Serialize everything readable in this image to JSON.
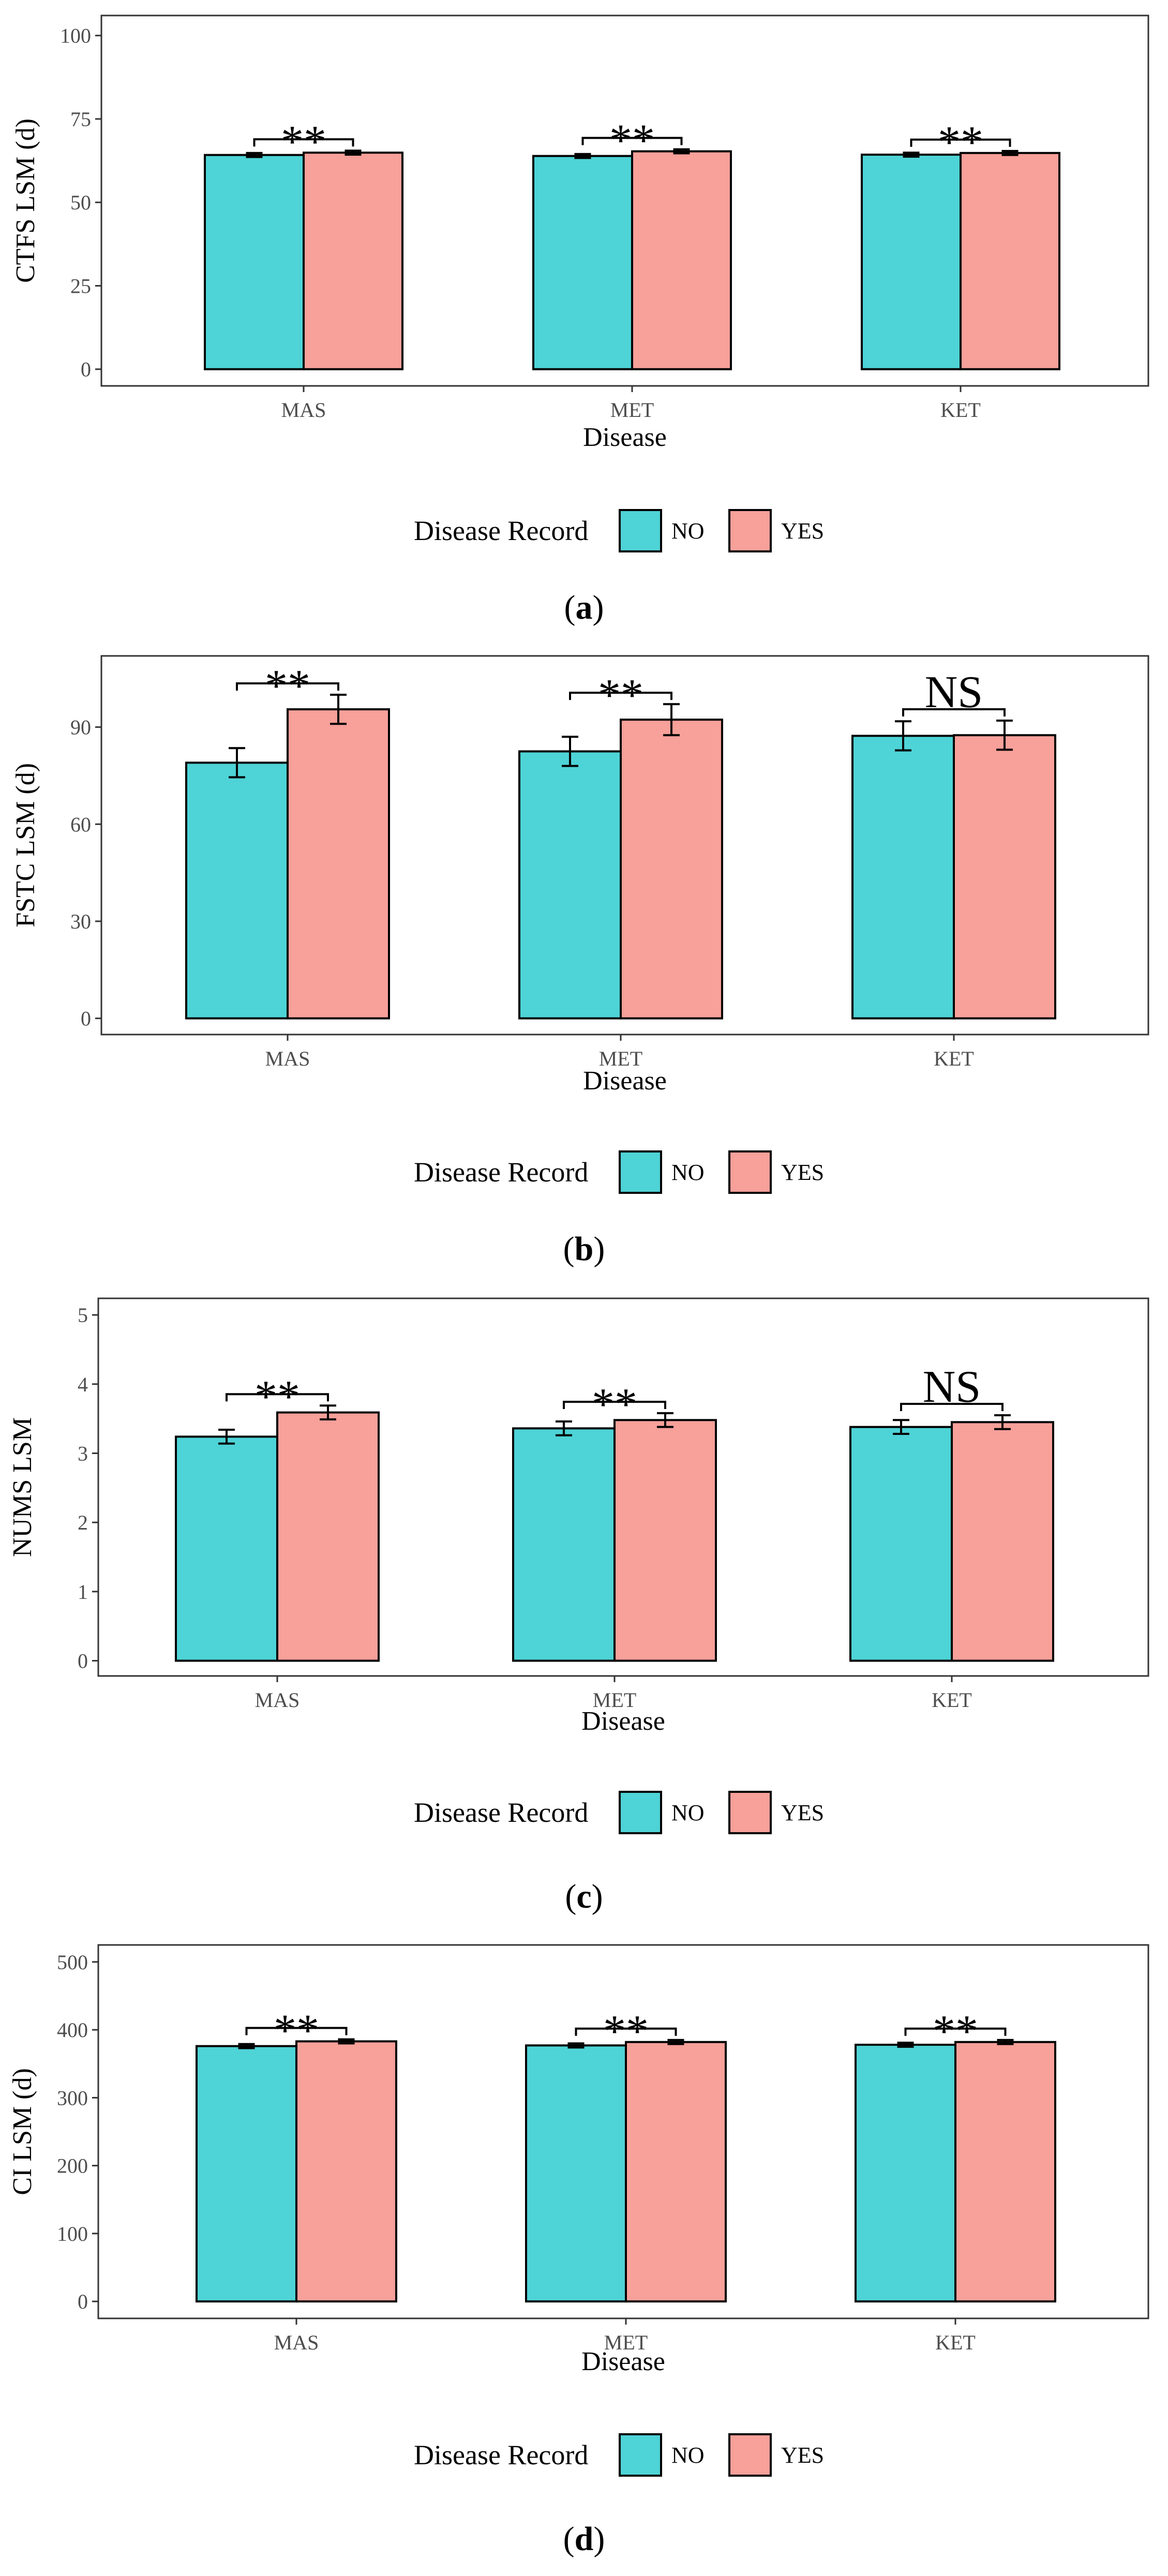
{
  "colors": {
    "NO": "#4ED3D6",
    "YES": "#F8A09A",
    "frame": "#333333",
    "bar_outline": "#000000"
  },
  "chart_data": [
    {
      "type": "bar",
      "panel_label": "a",
      "categories": [
        "MAS",
        "MET",
        "KET"
      ],
      "series": [
        {
          "name": "NO",
          "values": [
            64.2,
            63.9,
            64.3
          ],
          "errors": [
            0.6,
            0.6,
            0.6
          ]
        },
        {
          "name": "YES",
          "values": [
            64.9,
            65.3,
            64.8
          ],
          "errors": [
            0.6,
            0.6,
            0.6
          ]
        }
      ],
      "significance": [
        "**",
        "**",
        "**"
      ],
      "xlabel": "Disease",
      "ylabel": "CTFS LSM (d)",
      "ylim": [
        -5,
        106
      ],
      "yticks": [
        0,
        25,
        50,
        75,
        100
      ],
      "legend_title": "Disease Record",
      "legend_position": "bottom"
    },
    {
      "type": "bar",
      "panel_label": "b",
      "categories": [
        "MAS",
        "MET",
        "KET"
      ],
      "series": [
        {
          "name": "NO",
          "values": [
            79,
            82.5,
            87.3
          ],
          "errors": [
            4.5,
            4.5,
            4.5
          ]
        },
        {
          "name": "YES",
          "values": [
            95.5,
            92.3,
            87.5
          ],
          "errors": [
            4.5,
            4.8,
            4.5
          ]
        }
      ],
      "significance": [
        "**",
        "**",
        "NS"
      ],
      "xlabel": "Disease",
      "ylabel": "FSTC LSM (d)",
      "ylim": [
        -5,
        112
      ],
      "yticks": [
        0,
        30,
        60,
        90
      ],
      "legend_title": "Disease Record",
      "legend_position": "bottom"
    },
    {
      "type": "bar",
      "panel_label": "c",
      "categories": [
        "MAS",
        "MET",
        "KET"
      ],
      "series": [
        {
          "name": "NO",
          "values": [
            3.24,
            3.36,
            3.38
          ],
          "errors": [
            0.1,
            0.1,
            0.1
          ]
        },
        {
          "name": "YES",
          "values": [
            3.59,
            3.48,
            3.45
          ],
          "errors": [
            0.1,
            0.1,
            0.1
          ]
        }
      ],
      "significance": [
        "**",
        "**",
        "NS"
      ],
      "xlabel": "Disease",
      "ylabel": "NUMS LSM",
      "ylim": [
        -0.22,
        5.24
      ],
      "yticks": [
        0,
        1,
        2,
        3,
        4,
        5
      ],
      "legend_title": "Disease Record",
      "legend_position": "bottom"
    },
    {
      "type": "bar",
      "panel_label": "d",
      "categories": [
        "MAS",
        "MET",
        "KET"
      ],
      "series": [
        {
          "name": "NO",
          "values": [
            376,
            377,
            378
          ],
          "errors": [
            3,
            3,
            3
          ]
        },
        {
          "name": "YES",
          "values": [
            383,
            382,
            382
          ],
          "errors": [
            3,
            3,
            3
          ]
        }
      ],
      "significance": [
        "**",
        "**",
        "**"
      ],
      "xlabel": "Disease",
      "ylabel": "CI  LSM (d)",
      "ylim": [
        -25,
        525
      ],
      "yticks": [
        0,
        100,
        200,
        300,
        400,
        500
      ],
      "legend_title": "Disease Record",
      "legend_position": "bottom"
    }
  ]
}
